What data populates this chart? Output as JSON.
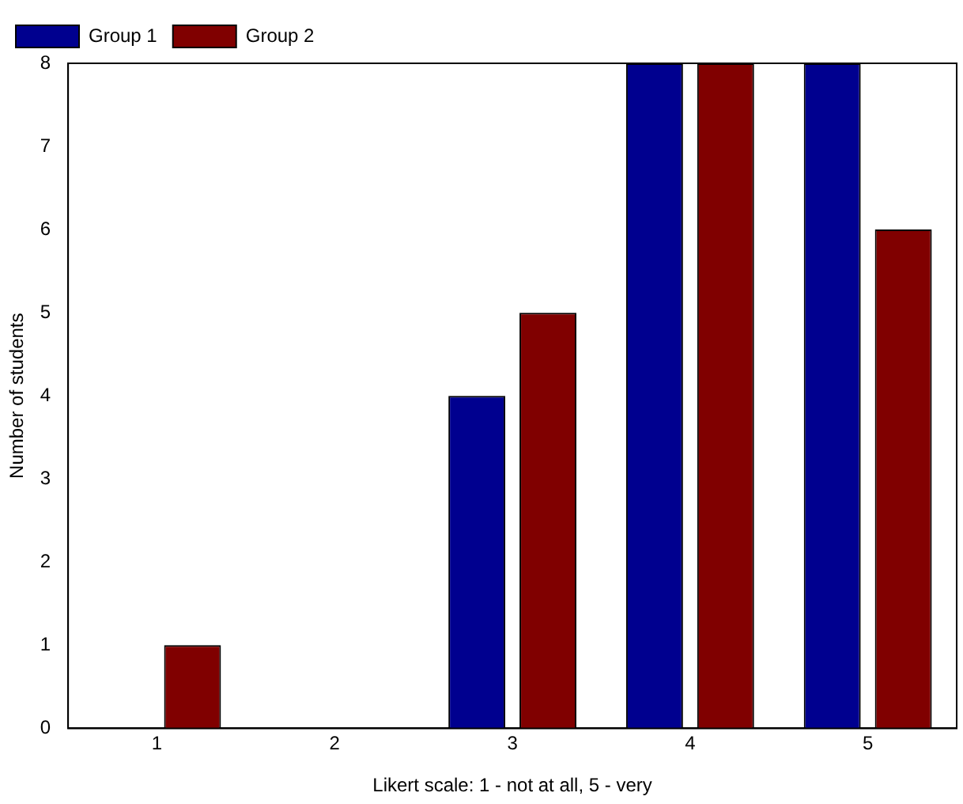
{
  "chart_data": {
    "type": "bar",
    "xlabel": "Likert scale: 1 - not at all, 5 - very",
    "ylabel": "Number of students",
    "categories": [
      "1",
      "2",
      "3",
      "4",
      "5"
    ],
    "series": [
      {
        "name": "Group 1",
        "color": "#00008f",
        "values": [
          0,
          0,
          4,
          8,
          8
        ]
      },
      {
        "name": "Group 2",
        "color": "#800000",
        "values": [
          1,
          0,
          5,
          8,
          6
        ]
      }
    ],
    "ylim": [
      0,
      8
    ],
    "yticks": [
      0,
      1,
      2,
      3,
      4,
      5,
      6,
      7,
      8
    ],
    "grid": false,
    "legend": "top left"
  }
}
